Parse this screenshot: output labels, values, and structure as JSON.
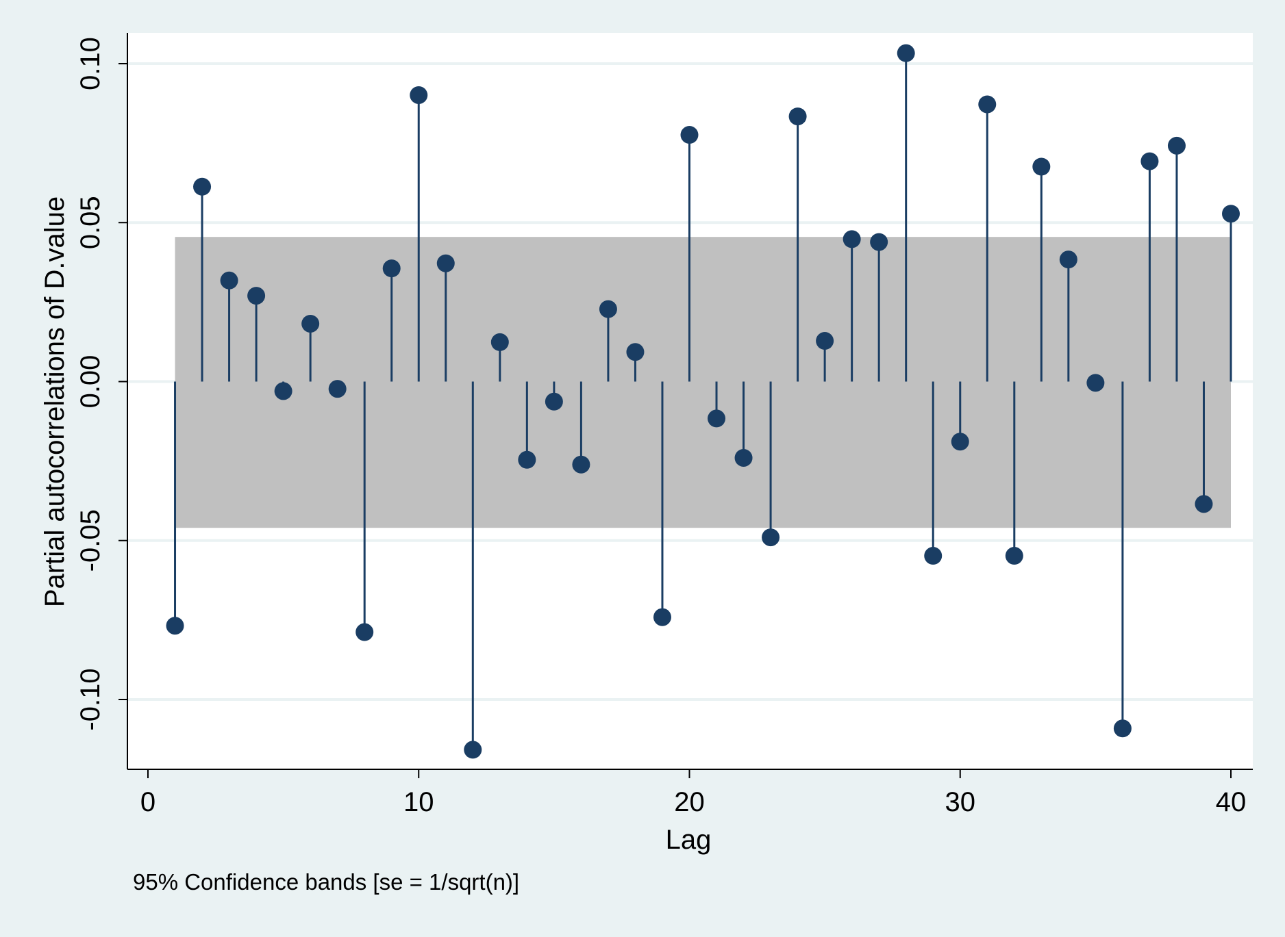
{
  "chart_data": {
    "type": "pacf",
    "ylabel": "Partial autocorrelations of D.value",
    "xlabel": "Lag",
    "note": "95% Confidence bands [se = 1/sqrt(n)]",
    "xlim": [
      0,
      40
    ],
    "ylim": [
      -0.122,
      0.1095
    ],
    "xticks": [
      0,
      10,
      20,
      30,
      40
    ],
    "xtick_labels": [
      "0",
      "10",
      "20",
      "30",
      "40"
    ],
    "yticks": [
      -0.1,
      -0.05,
      0.0,
      0.05,
      0.1
    ],
    "ytick_labels": [
      "-0.10",
      "-0.05",
      "0.00",
      "0.05",
      "0.10"
    ],
    "grid": true,
    "confidence_band": {
      "lower": -0.046,
      "upper": 0.0455,
      "from_lag": 1,
      "to_lag": 40
    },
    "lags": [
      1,
      2,
      3,
      4,
      5,
      6,
      7,
      8,
      9,
      10,
      11,
      12,
      13,
      14,
      15,
      16,
      17,
      18,
      19,
      20,
      21,
      22,
      23,
      24,
      25,
      26,
      27,
      28,
      29,
      30,
      31,
      32,
      33,
      34,
      35,
      36,
      37,
      38,
      39,
      40
    ],
    "values": [
      -0.0768,
      0.0613,
      0.0318,
      0.027,
      -0.003,
      0.0182,
      -0.0023,
      -0.0788,
      0.0356,
      0.0901,
      0.0372,
      -0.1158,
      0.0124,
      -0.0246,
      -0.0063,
      -0.0261,
      0.0228,
      0.0093,
      -0.0741,
      0.0776,
      -0.0116,
      -0.024,
      -0.049,
      0.0834,
      0.0128,
      0.0448,
      0.0439,
      0.1033,
      -0.0548,
      -0.0189,
      0.0872,
      -0.0548,
      0.0676,
      0.0384,
      -0.0004,
      -0.1091,
      0.0693,
      0.0742,
      -0.0385,
      0.0528
    ],
    "colors": {
      "marker": "#1a3d63",
      "band": "#c0c0c0",
      "plot_bg": "#ffffff",
      "grid": "#eaf2f3",
      "page_bg": "#eaf2f3"
    }
  }
}
